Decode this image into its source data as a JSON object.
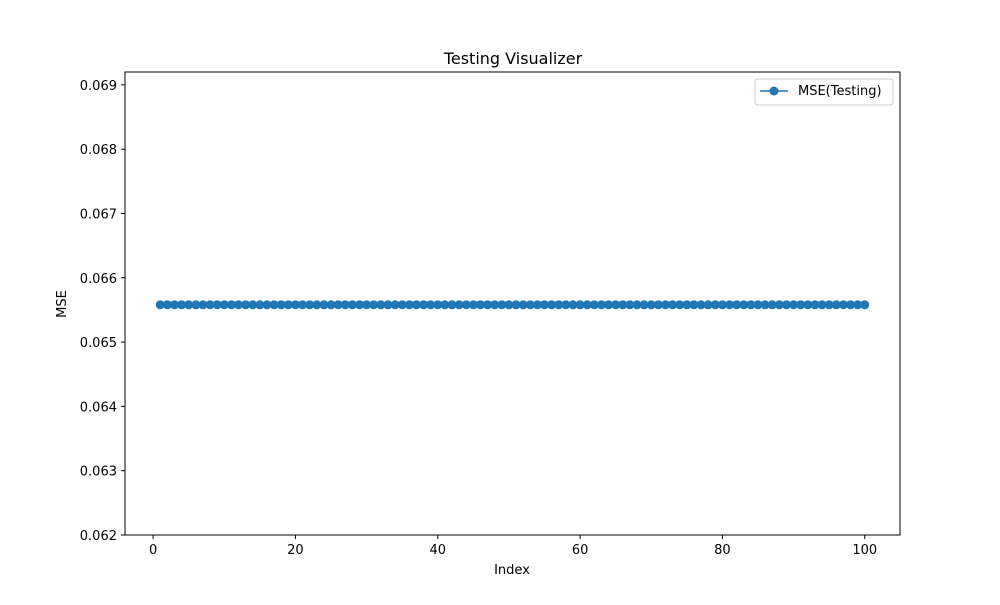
{
  "chart_data": {
    "type": "line",
    "title": "Testing Visualizer",
    "xlabel": "Index",
    "ylabel": "MSE",
    "xlim": [
      -3.95,
      104.95
    ],
    "ylim": [
      0.062,
      0.0692
    ],
    "x_ticks": [
      0,
      20,
      40,
      60,
      80,
      100
    ],
    "x_tick_labels": [
      "0",
      "20",
      "40",
      "60",
      "80",
      "100"
    ],
    "y_ticks": [
      0.062,
      0.063,
      0.064,
      0.065,
      0.066,
      0.067,
      0.068,
      0.069
    ],
    "y_tick_labels": [
      "0.062",
      "0.063",
      "0.064",
      "0.065",
      "0.066",
      "0.067",
      "0.068",
      "0.069"
    ],
    "grid": false,
    "legend_position": "top-right",
    "marker": "circle",
    "series": [
      {
        "name": "MSE(Testing)",
        "color": "#1f77b4",
        "x_start": 1,
        "x_end": 100,
        "x_step": 1,
        "constant_value": 0.06558
      }
    ]
  }
}
